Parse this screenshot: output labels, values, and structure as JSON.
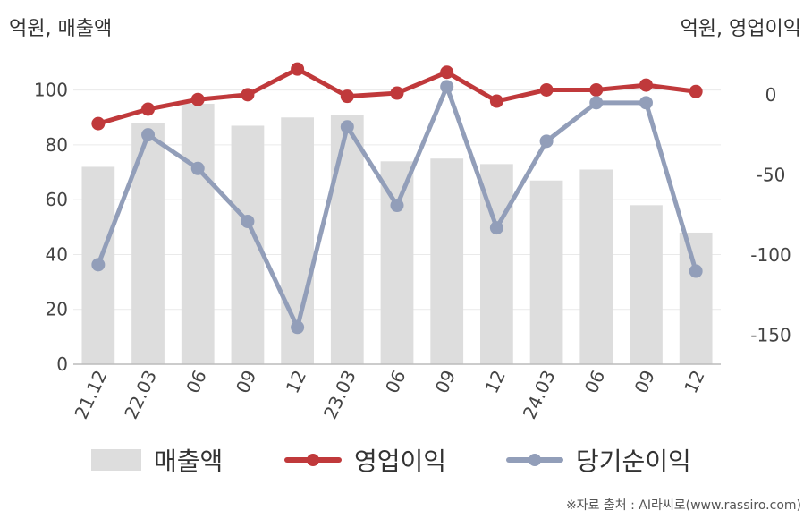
{
  "left_axis_title": "억원, 매출액",
  "right_axis_title": "억원, 영업이익",
  "source": "※자료 출처 : AI라씨로(www.rassiro.com)",
  "colors": {
    "revenue": "#dddddd",
    "operating_profit": "#c0393b",
    "net_income": "#929eb9",
    "grid": "#eaeaea",
    "axis": "#bbbbbb"
  },
  "chart_data": {
    "type": "bar",
    "categories": [
      "21.12",
      "22.03",
      "06",
      "09",
      "12",
      "23.03",
      "06",
      "09",
      "12",
      "24.03",
      "06",
      "09",
      "12"
    ],
    "y_left": {
      "min": 0,
      "max": 110,
      "ticks": [
        0,
        20,
        40,
        60,
        80,
        100
      ]
    },
    "y_right": {
      "min": -168,
      "max": 20,
      "ticks": [
        0,
        -50,
        -100,
        -150
      ]
    },
    "grid": true,
    "legend_position": "bottom",
    "series": [
      {
        "name": "매출액",
        "type": "bar",
        "axis": "left",
        "values": [
          72,
          88,
          95,
          87,
          90,
          91,
          74,
          75,
          73,
          67,
          71,
          58,
          48
        ]
      },
      {
        "name": "영업이익",
        "type": "line",
        "axis": "right",
        "values": [
          -18,
          -9,
          -3,
          0,
          16,
          -1,
          1,
          14,
          -4,
          3,
          3,
          6,
          2
        ]
      },
      {
        "name": "당기순이익",
        "type": "line",
        "axis": "right",
        "values": [
          -106,
          -25,
          -46,
          -79,
          -145,
          -20,
          -69,
          5,
          -83,
          -29,
          -5,
          -5,
          -110
        ]
      }
    ]
  }
}
